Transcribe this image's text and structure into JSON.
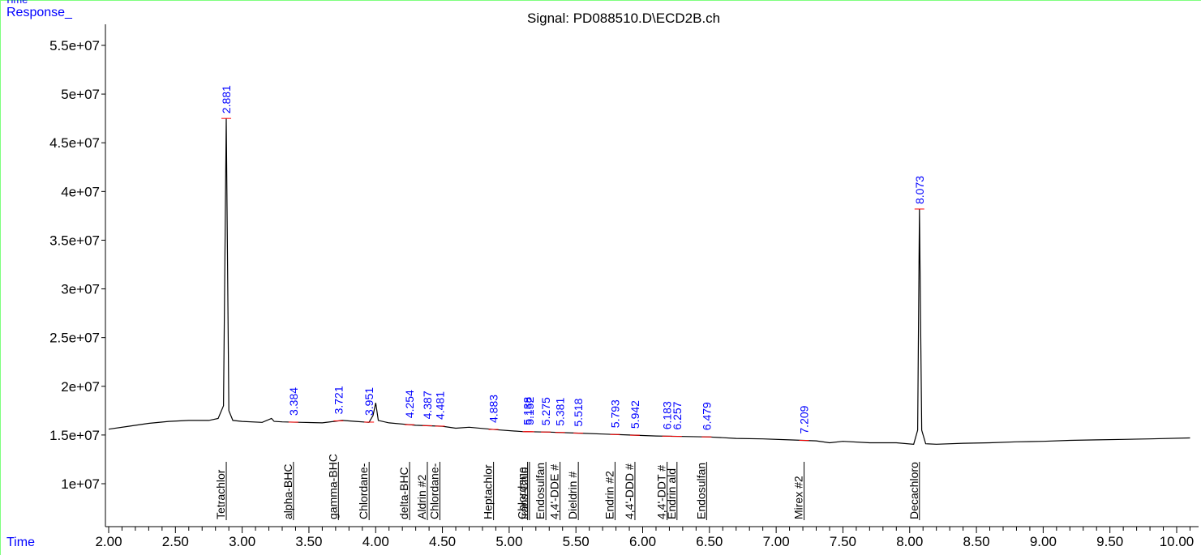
{
  "header": {
    "top_time": "Time",
    "response": "Response_",
    "bottom_time": "Time",
    "signal": "Signal: PD088510.D\\ECD2B.ch"
  },
  "colors": {
    "trace": "#000000",
    "peak_label": "#0000ff",
    "baseline_mark": "#ff0000",
    "frame": "#7fff7f",
    "corner_label": "#0000ff"
  },
  "chart_data": {
    "type": "line",
    "title": "Signal: PD088510.D\\ECD2B.ch",
    "xlabel": "Time",
    "ylabel": "Response_",
    "xlim": [
      2.0,
      10.1
    ],
    "ylim": [
      5000000,
      57500000
    ],
    "x_ticks": [
      2.0,
      2.5,
      3.0,
      3.5,
      4.0,
      4.5,
      5.0,
      5.5,
      6.0,
      6.5,
      7.0,
      7.5,
      8.0,
      8.5,
      9.0,
      9.5,
      10.0
    ],
    "x_tick_labels": [
      "2.00",
      "2.50",
      "3.00",
      "3.50",
      "4.00",
      "4.50",
      "5.00",
      "5.50",
      "6.00",
      "6.50",
      "7.00",
      "7.50",
      "8.00",
      "8.50",
      "9.00",
      "9.50",
      "10.00"
    ],
    "y_ticks": [
      10000000,
      15000000,
      20000000,
      25000000,
      30000000,
      35000000,
      40000000,
      45000000,
      50000000,
      55000000
    ],
    "y_tick_labels": [
      "1e+07",
      "1.5e+07",
      "2e+07",
      "2.5e+07",
      "3e+07",
      "3.5e+07",
      "4e+07",
      "4.5e+07",
      "5e+07",
      "5.5e+07"
    ],
    "trace": {
      "x": [
        2.0,
        2.15,
        2.3,
        2.45,
        2.6,
        2.75,
        2.82,
        2.86,
        2.881,
        2.9,
        2.93,
        3.0,
        3.15,
        3.22,
        3.24,
        3.3,
        3.45,
        3.6,
        3.75,
        3.85,
        3.95,
        3.98,
        4.0,
        4.02,
        4.1,
        4.3,
        4.5,
        4.6,
        4.7,
        4.9,
        5.1,
        5.3,
        5.5,
        5.7,
        5.9,
        6.1,
        6.3,
        6.5,
        6.7,
        6.9,
        7.1,
        7.3,
        7.4,
        7.5,
        7.7,
        7.9,
        8.03,
        8.06,
        8.073,
        8.09,
        8.12,
        8.2,
        8.4,
        8.6,
        8.8,
        9.0,
        9.2,
        9.4,
        9.6,
        9.8,
        10.1
      ],
      "y": [
        15600000,
        15900000,
        16200000,
        16400000,
        16500000,
        16500000,
        16700000,
        18000000,
        47500000,
        17500000,
        16500000,
        16400000,
        16300000,
        16700000,
        16400000,
        16350000,
        16300000,
        16250000,
        16500000,
        16400000,
        16300000,
        17000000,
        18300000,
        16500000,
        16250000,
        16000000,
        15900000,
        15700000,
        15800000,
        15550000,
        15350000,
        15300000,
        15200000,
        15100000,
        15000000,
        14900000,
        14850000,
        14800000,
        14650000,
        14600000,
        14500000,
        14400000,
        14200000,
        14350000,
        14200000,
        14200000,
        14050000,
        15500000,
        38200000,
        15500000,
        14100000,
        14050000,
        14150000,
        14200000,
        14300000,
        14350000,
        14450000,
        14500000,
        14550000,
        14600000,
        14700000
      ]
    },
    "peak_labels": [
      {
        "rt": 2.881,
        "label": "2.881"
      },
      {
        "rt": 3.384,
        "label": "3.384"
      },
      {
        "rt": 3.721,
        "label": "3.721"
      },
      {
        "rt": 3.951,
        "label": "3.951"
      },
      {
        "rt": 4.254,
        "label": "4.254"
      },
      {
        "rt": 4.387,
        "label": "4.387"
      },
      {
        "rt": 4.481,
        "label": "4.481"
      },
      {
        "rt": 4.883,
        "label": "4.883"
      },
      {
        "rt": 5.138,
        "label": "5.138"
      },
      {
        "rt": 5.152,
        "label": "5.152"
      },
      {
        "rt": 5.275,
        "label": "5.275"
      },
      {
        "rt": 5.381,
        "label": "5.381"
      },
      {
        "rt": 5.518,
        "label": "5.518"
      },
      {
        "rt": 5.793,
        "label": "5.793"
      },
      {
        "rt": 5.942,
        "label": "5.942"
      },
      {
        "rt": 6.183,
        "label": "6.183"
      },
      {
        "rt": 6.257,
        "label": "6.257"
      },
      {
        "rt": 6.479,
        "label": "6.479"
      },
      {
        "rt": 7.209,
        "label": "7.209"
      },
      {
        "rt": 8.073,
        "label": "8.073"
      }
    ],
    "compound_labels": [
      {
        "rt": 2.881,
        "label": "Tetrachlor"
      },
      {
        "rt": 3.384,
        "label": "alpha-BHC"
      },
      {
        "rt": 3.721,
        "label": "gamma-BHC"
      },
      {
        "rt": 3.951,
        "label": "Chlordane-"
      },
      {
        "rt": 4.254,
        "label": "delta-BHC"
      },
      {
        "rt": 4.387,
        "label": "Aldrin #2"
      },
      {
        "rt": 4.481,
        "label": "Chlordane-"
      },
      {
        "rt": 4.883,
        "label": "Heptachlor"
      },
      {
        "rt": 5.138,
        "label": "Chlordane"
      },
      {
        "rt": 5.152,
        "label": "trans-Chlo"
      },
      {
        "rt": 5.275,
        "label": "Endosulfan"
      },
      {
        "rt": 5.381,
        "label": "4,4'-DDE #"
      },
      {
        "rt": 5.518,
        "label": "Dieldrin #"
      },
      {
        "rt": 5.793,
        "label": "Endrin #2"
      },
      {
        "rt": 5.942,
        "label": "4,4'-DDD #"
      },
      {
        "rt": 6.183,
        "label": "4,4'-DDT #"
      },
      {
        "rt": 6.257,
        "label": "Endrin ald"
      },
      {
        "rt": 6.479,
        "label": "Endosulfan"
      },
      {
        "rt": 7.209,
        "label": "Mirex #2"
      },
      {
        "rt": 8.073,
        "label": "Decachloro"
      }
    ]
  }
}
